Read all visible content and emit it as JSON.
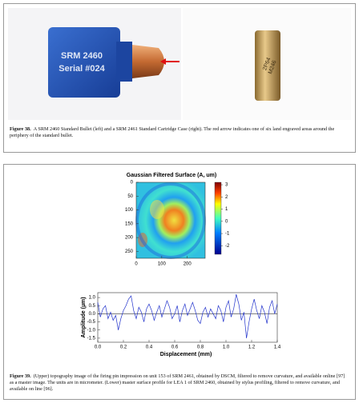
{
  "figure38": {
    "photo_left_text": [
      "SRM 2460",
      "Serial #024"
    ],
    "photo_right_text": [
      "2P64",
      "M246"
    ],
    "caption_label": "Figure 38.",
    "caption_text": "A SRM 2460 Standard Bullet (left) and a SRM 2461 Standard Cartridge Case (right). The red arrow indicates one of six land engraved areas around the periphery of the standard bullet."
  },
  "figure39": {
    "heatmap": {
      "title": "Gaussian Filtered Surface (A, um)",
      "xlim": [
        0,
        270
      ],
      "ylim": [
        0,
        275
      ],
      "xticks": [
        0,
        100,
        200
      ],
      "yticks": [
        0,
        50,
        100,
        150,
        200,
        250
      ],
      "colorbar_lim": [
        -2.7,
        3.2
      ],
      "colorbar_ticks": [
        3,
        2,
        1,
        0,
        -1,
        -2
      ]
    },
    "profile": {
      "type": "line",
      "x_label": "Displacement (mm)",
      "y_label": "Amplitude (µm)",
      "color": "#2233cc",
      "xlim": [
        0,
        1.4
      ],
      "ylim": [
        -1.75,
        1.3
      ],
      "xticks": [
        {
          "value": 0,
          "label": "0.0"
        },
        0.2,
        0.4,
        0.6,
        0.8,
        {
          "value": 1,
          "label": "1.0"
        },
        1.2,
        1.4
      ],
      "yticks": [
        {
          "value": 1,
          "label": "1.0"
        },
        0.5,
        {
          "value": 0,
          "label": "0.0"
        },
        -0.5,
        {
          "value": -1,
          "label": "-1.0"
        },
        -1.5
      ],
      "x": [
        0,
        0.02,
        0.04,
        0.06,
        0.08,
        0.1,
        0.12,
        0.14,
        0.16,
        0.18,
        0.2,
        0.22,
        0.24,
        0.26,
        0.28,
        0.3,
        0.32,
        0.34,
        0.36,
        0.38,
        0.4,
        0.42,
        0.44,
        0.46,
        0.48,
        0.5,
        0.52,
        0.54,
        0.56,
        0.58,
        0.6,
        0.62,
        0.64,
        0.66,
        0.68,
        0.7,
        0.72,
        0.74,
        0.76,
        0.78,
        0.8,
        0.82,
        0.84,
        0.86,
        0.88,
        0.9,
        0.92,
        0.94,
        0.96,
        0.98,
        1,
        1.02,
        1.04,
        1.06,
        1.08,
        1.1,
        1.12,
        1.14,
        1.16,
        1.18,
        1.2,
        1.22,
        1.24,
        1.26,
        1.28,
        1.3,
        1.32,
        1.34,
        1.36,
        1.38,
        1.4
      ],
      "values": [
        0.7,
        -0.2,
        0.3,
        0.5,
        -0.3,
        0.1,
        -0.4,
        -0.1,
        -1.0,
        -0.3,
        0.2,
        0.5,
        0.9,
        1.1,
        0.2,
        -0.3,
        0.4,
        0.1,
        -0.5,
        0.3,
        0.6,
        0.2,
        -0.4,
        0.1,
        0.5,
        -0.2,
        0.3,
        0.8,
        0.4,
        -0.3,
        0.0,
        0.5,
        -0.5,
        0.2,
        0.6,
        -0.1,
        0.3,
        0.7,
        0.2,
        -0.4,
        -0.6,
        0.1,
        0.4,
        -0.2,
        0.3,
        0.0,
        -0.3,
        0.5,
        0.2,
        -0.5,
        0.4,
        0.8,
        -0.2,
        0.3,
        1.2,
        0.6,
        -0.4,
        0.1,
        -1.5,
        -0.5,
        0.3,
        0.9,
        0.2,
        -0.3,
        0.5,
        0.1,
        -0.6,
        0.4,
        0.8,
        0.0,
        0.6
      ]
    },
    "caption_label": "Figure 39.",
    "caption_text": "(Upper) topography image of the firing pin impression on unit 153 of SRM 2461, obtained by DSCM, filtered to remove curvature, and available online [97] as a master image. The units are in micrometer. (Lower) master surface profile for LEA 1 of SRM 2460, obtained by stylus profiling, filtered to remove curvature, and available on line [96]."
  }
}
